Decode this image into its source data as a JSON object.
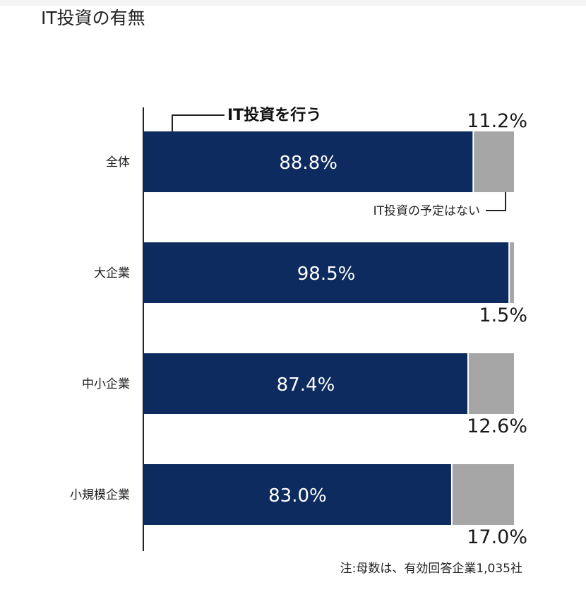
{
  "page": {
    "title": "IT投資の有無"
  },
  "chart_data": {
    "type": "bar",
    "orientation": "horizontal",
    "stacked": true,
    "categories": [
      "全体",
      "大企業",
      "中小企業",
      "小規模企業"
    ],
    "series": [
      {
        "name": "IT投資を行う",
        "values": [
          88.8,
          98.5,
          87.4,
          83.0
        ],
        "color": "#0d2b5e"
      },
      {
        "name": "IT投資の予定はない",
        "values": [
          11.2,
          1.5,
          12.6,
          17.0
        ],
        "color": "#a6a6a6"
      }
    ],
    "value_labels": {
      "invest": [
        "88.8%",
        "98.5%",
        "87.4%",
        "83.0%"
      ],
      "none": [
        "11.2%",
        "1.5%",
        "12.6%",
        "17.0%"
      ]
    },
    "legend": {
      "invest": "IT投資を行う",
      "none": "IT投資の予定はない"
    },
    "xlim": [
      0,
      100
    ],
    "grid": false,
    "note": "注:母数は、有効回答企業1,035社"
  }
}
